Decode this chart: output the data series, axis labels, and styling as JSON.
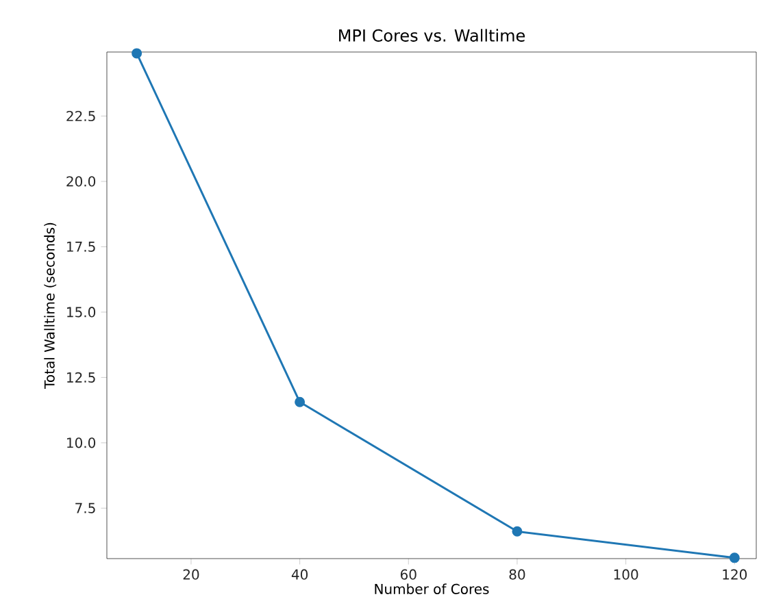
{
  "chart_data": {
    "type": "line",
    "title": "MPI Cores vs. Walltime",
    "xlabel": "Number of Cores",
    "ylabel": "Total Walltime (seconds)",
    "x": [
      10,
      40,
      80,
      120
    ],
    "series": [
      {
        "color": "#1f77b4",
        "values": [
          24.9,
          11.56,
          6.61,
          5.6
        ]
      }
    ],
    "xlim": [
      4.5,
      124
    ],
    "ylim": [
      5.57,
      24.95
    ],
    "xticks": [
      20,
      40,
      60,
      80,
      100,
      120
    ],
    "yticks": [
      {
        "value": 7.5,
        "label": "7.5"
      },
      {
        "value": 10.0,
        "label": "10.0"
      },
      {
        "value": 12.5,
        "label": "12.5"
      },
      {
        "value": 15.0,
        "label": "15.0"
      },
      {
        "value": 17.5,
        "label": "17.5"
      },
      {
        "value": 20.0,
        "label": "20.0"
      },
      {
        "value": 22.5,
        "label": "22.5"
      }
    ],
    "marker": "circle",
    "line_style": "solid"
  }
}
